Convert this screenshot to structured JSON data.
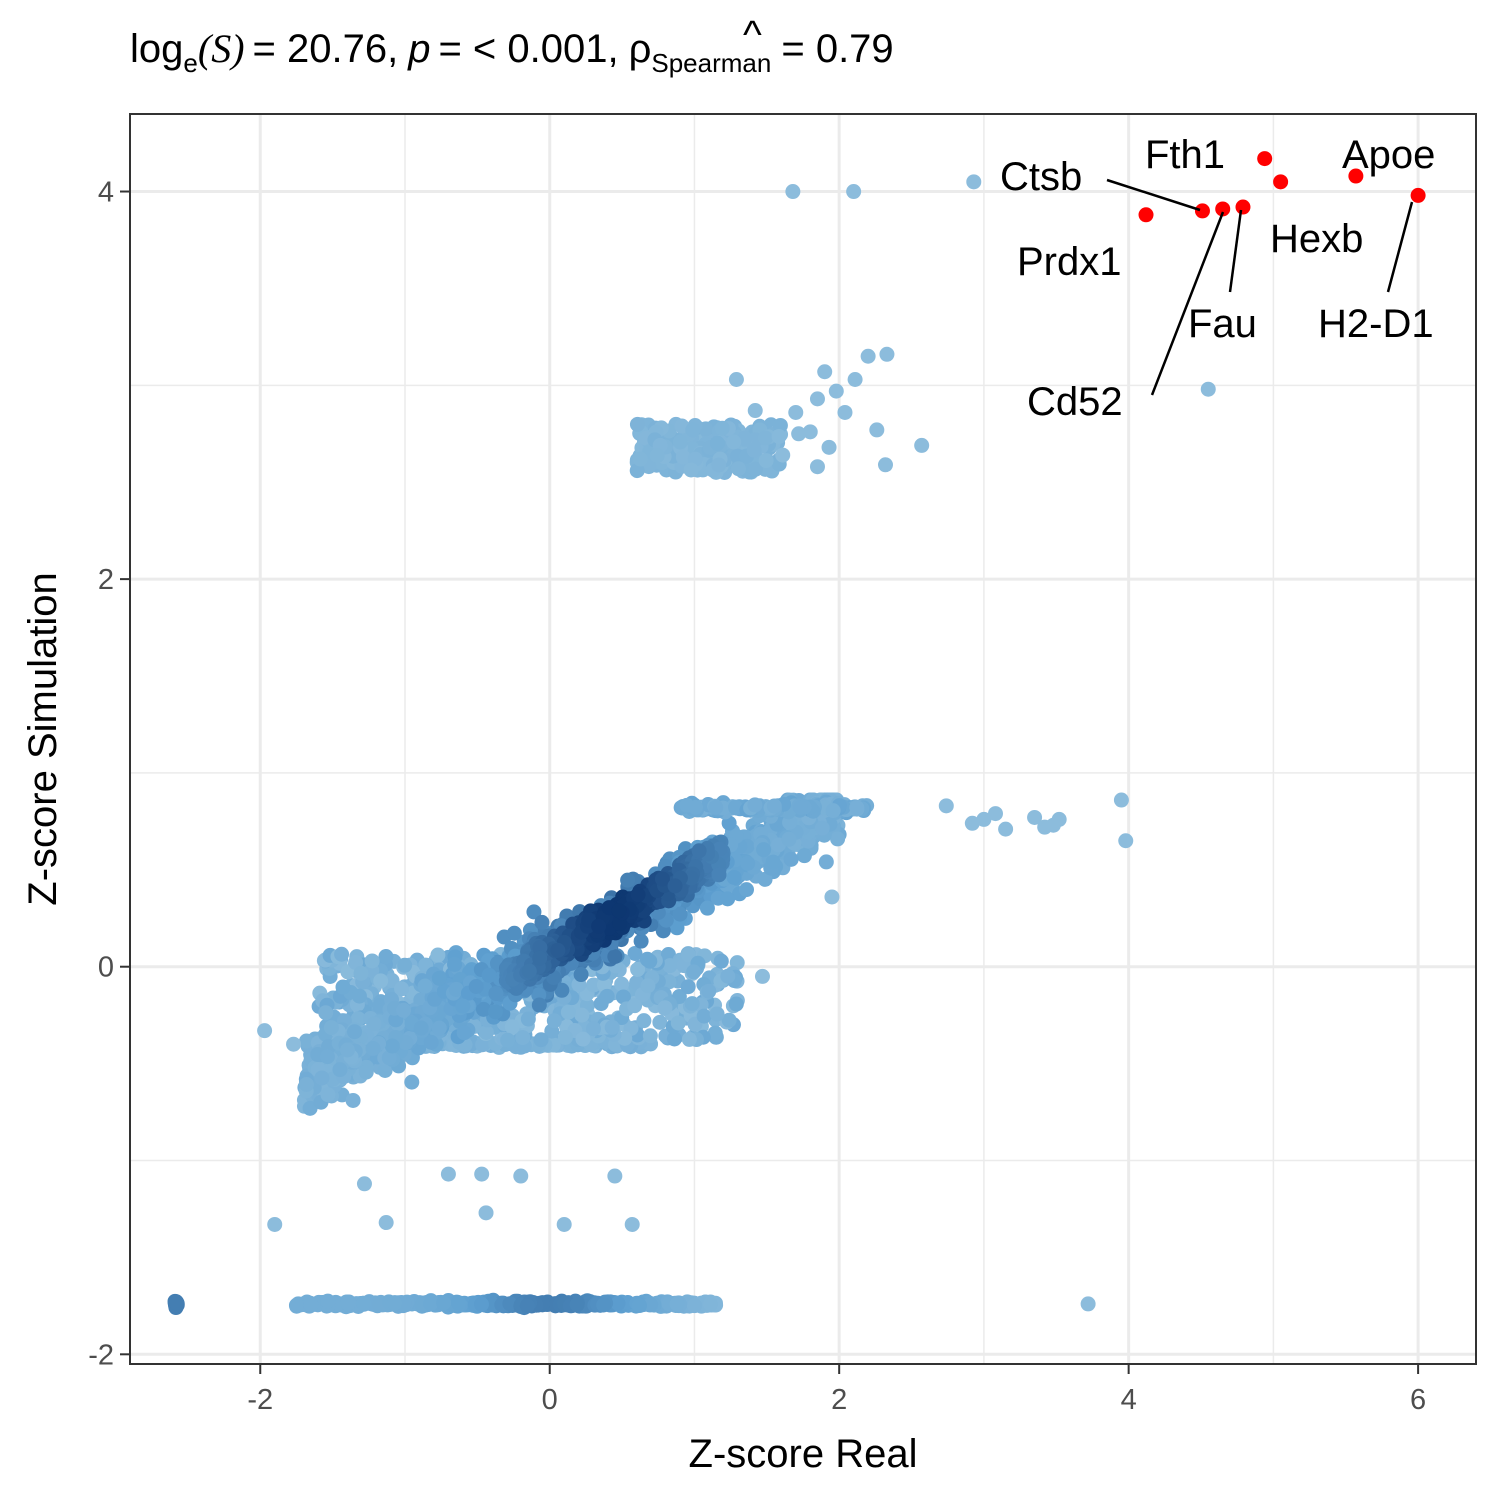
{
  "chart_data": {
    "type": "scatter",
    "title": {
      "log_text": "log",
      "log_sub": "e",
      "stat_symbol": "S",
      "stat_value": "= 20.76,",
      "p_label": "p",
      "p_value": "= < 0.001,",
      "rho_symbol": "ρ",
      "rho_hat": "^",
      "rho_sub": "Spearman",
      "rho_value": "= 0.79"
    },
    "xlabel": "Z-score Real",
    "ylabel": "Z-score Simulation",
    "xlim": [
      -2.9,
      6.4
    ],
    "ylim": [
      -2.05,
      4.4
    ],
    "x_ticks": [
      -2,
      0,
      2,
      4,
      6
    ],
    "y_ticks": [
      -2,
      0,
      2,
      4
    ],
    "x_tick_labels": [
      "-2",
      "0",
      "2",
      "4",
      "6"
    ],
    "y_tick_labels": [
      "-2",
      "0",
      "2",
      "4"
    ],
    "colors": {
      "light": "#a6cde3",
      "mid": "#5d9fd0",
      "dark": "#08306b",
      "highlight": "#ff0000"
    },
    "highlighted": [
      {
        "gene": "Apoe",
        "x": 5.57,
        "y": 4.08
      },
      {
        "gene": "H2-D1",
        "x": 6.0,
        "y": 3.98
      },
      {
        "gene": "Hexb",
        "x": 5.05,
        "y": 4.05
      },
      {
        "gene": "Fth1",
        "x": 4.94,
        "y": 4.17
      },
      {
        "gene": "Fau",
        "x": 4.79,
        "y": 3.92
      },
      {
        "gene": "Cd52",
        "x": 4.65,
        "y": 3.91
      },
      {
        "gene": "Ctsb",
        "x": 4.51,
        "y": 3.9
      },
      {
        "gene": "Prdx1",
        "x": 4.12,
        "y": 3.88
      }
    ],
    "outliers": [
      {
        "x": 1.68,
        "y": 4.0
      },
      {
        "x": 2.1,
        "y": 4.0
      },
      {
        "x": 2.93,
        "y": 4.05
      },
      {
        "x": 4.55,
        "y": 2.98
      },
      {
        "x": 2.2,
        "y": 3.15
      },
      {
        "x": 2.33,
        "y": 3.16
      },
      {
        "x": 1.29,
        "y": 3.03
      },
      {
        "x": 1.9,
        "y": 3.07
      },
      {
        "x": 2.11,
        "y": 3.03
      },
      {
        "x": 1.85,
        "y": 2.93
      },
      {
        "x": 1.98,
        "y": 2.97
      },
      {
        "x": 1.42,
        "y": 2.87
      },
      {
        "x": 1.7,
        "y": 2.86
      },
      {
        "x": 2.04,
        "y": 2.86
      },
      {
        "x": 2.26,
        "y": 2.77
      },
      {
        "x": 2.57,
        "y": 2.69
      },
      {
        "x": 2.32,
        "y": 2.59
      },
      {
        "x": 1.85,
        "y": 2.58
      },
      {
        "x": 1.72,
        "y": 2.75
      },
      {
        "x": 1.8,
        "y": 2.76
      },
      {
        "x": 1.93,
        "y": 2.68
      },
      {
        "x": 1.61,
        "y": 2.64
      },
      {
        "x": 2.74,
        "y": 0.83
      },
      {
        "x": 2.92,
        "y": 0.74
      },
      {
        "x": 3.0,
        "y": 0.76
      },
      {
        "x": 3.08,
        "y": 0.79
      },
      {
        "x": 3.15,
        "y": 0.71
      },
      {
        "x": 3.35,
        "y": 0.77
      },
      {
        "x": 3.42,
        "y": 0.72
      },
      {
        "x": 3.48,
        "y": 0.73
      },
      {
        "x": 3.52,
        "y": 0.76
      },
      {
        "x": 3.95,
        "y": 0.86
      },
      {
        "x": 3.98,
        "y": 0.65
      },
      {
        "x": 1.95,
        "y": 0.36
      },
      {
        "x": 3.72,
        "y": -1.74
      },
      {
        "x": 1.47,
        "y": -0.05
      },
      {
        "x": -1.13,
        "y": -1.32
      },
      {
        "x": -1.28,
        "y": -1.12
      },
      {
        "x": -0.7,
        "y": -1.07
      },
      {
        "x": -0.47,
        "y": -1.07
      },
      {
        "x": -0.2,
        "y": -1.08
      },
      {
        "x": 0.45,
        "y": -1.08
      },
      {
        "x": -1.9,
        "y": -1.33
      },
      {
        "x": -0.44,
        "y": -1.27
      },
      {
        "x": 0.1,
        "y": -1.33
      },
      {
        "x": 0.57,
        "y": -1.33
      },
      {
        "x": -1.97,
        "y": -0.33
      },
      {
        "x": -1.77,
        "y": -0.4
      }
    ]
  }
}
